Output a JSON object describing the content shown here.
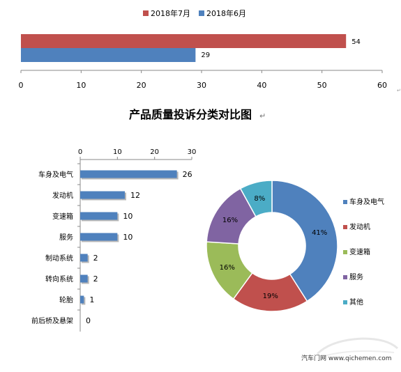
{
  "colors": {
    "jul": "#c0504d",
    "jun": "#4f81bd",
    "axis": "#888888",
    "slices": [
      "#4f81bd",
      "#c0504d",
      "#9bbb59",
      "#8064a2",
      "#4bacc6"
    ]
  },
  "chart_data": [
    {
      "type": "bar",
      "orientation": "horizontal",
      "series": [
        {
          "name": "2018年7月",
          "values": [
            54
          ]
        },
        {
          "name": "2018年6月",
          "values": [
            29
          ]
        }
      ],
      "xlim": [
        0,
        60
      ],
      "xticks": [
        "0",
        "10",
        "20",
        "30",
        "40",
        "50",
        "60"
      ],
      "legend_position": "top",
      "data_labels": [
        "54",
        "29"
      ]
    },
    {
      "type": "bar",
      "orientation": "horizontal",
      "categories": [
        "车身及电气",
        "发动机",
        "变速箱",
        "服务",
        "制动系统",
        "转向系统",
        "轮胎",
        "前后桥及悬架"
      ],
      "values": [
        26,
        12,
        10,
        10,
        2,
        2,
        1,
        0
      ],
      "data_labels": [
        "26",
        "12",
        "10",
        "10",
        "2",
        "2",
        "1",
        "0"
      ],
      "xlim": [
        0,
        30
      ],
      "xticks": [
        "0",
        "10",
        "20",
        "30"
      ],
      "x_axis_position": "top"
    },
    {
      "type": "pie",
      "style": "donut",
      "slices": [
        {
          "label": "车身及电气",
          "value": 41,
          "display": "41%"
        },
        {
          "label": "发动机",
          "value": 19,
          "display": "19%"
        },
        {
          "label": "变速箱",
          "value": 16,
          "display": "16%"
        },
        {
          "label": "服务",
          "value": 16,
          "display": "16%"
        },
        {
          "label": "其他",
          "value": 8,
          "display": "8%"
        }
      ],
      "legend_position": "right"
    }
  ],
  "section_title": "产品质量投诉分类对比图",
  "watermark_text": "汽车门网 www.qichemen.com"
}
